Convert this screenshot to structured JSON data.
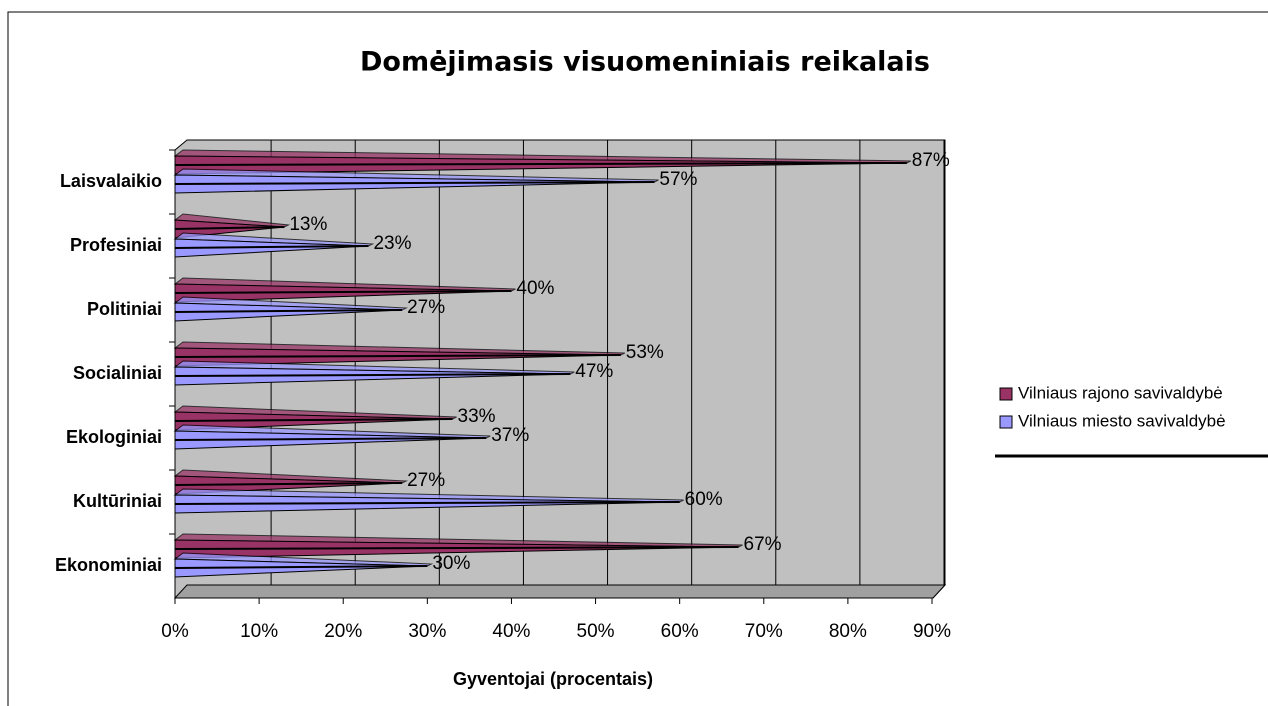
{
  "chart_data": {
    "type": "bar3d-horizontal",
    "title": "Domėjimasis visuomeniniais reikalais",
    "xlabel": "Gyventojai (procentais)",
    "categories": [
      "Laisvalaikio",
      "Profesiniai",
      "Politiniai",
      "Socialiniai",
      "Ekologiniai",
      "Kultūriniai",
      "Ekonominiai"
    ],
    "series": [
      {
        "name": "Vilniaus rajono savivaldybė",
        "color": "#993366",
        "values": [
          87,
          13,
          40,
          53,
          33,
          27,
          67
        ],
        "value_labels": [
          "87%",
          "13%",
          "40%",
          "53%",
          "33%",
          "27%",
          "67%"
        ]
      },
      {
        "name": "Vilniaus miesto savivaldybė",
        "color": "#9999ff",
        "values": [
          57,
          23,
          27,
          47,
          37,
          60,
          30
        ],
        "value_labels": [
          "57%",
          "23%",
          "27%",
          "47%",
          "37%",
          "60%",
          "30%"
        ]
      }
    ],
    "xlim": [
      0,
      90
    ],
    "xticks": [
      {
        "value": 0,
        "label": "0%"
      },
      {
        "value": 10,
        "label": "10%"
      },
      {
        "value": 20,
        "label": "20%"
      },
      {
        "value": 30,
        "label": "30%"
      },
      {
        "value": 40,
        "label": "40%"
      },
      {
        "value": 50,
        "label": "50%"
      },
      {
        "value": 60,
        "label": "60%"
      },
      {
        "value": 70,
        "label": "70%"
      },
      {
        "value": 80,
        "label": "80%"
      },
      {
        "value": 90,
        "label": "90%"
      }
    ],
    "grid": true,
    "legend": "right"
  }
}
